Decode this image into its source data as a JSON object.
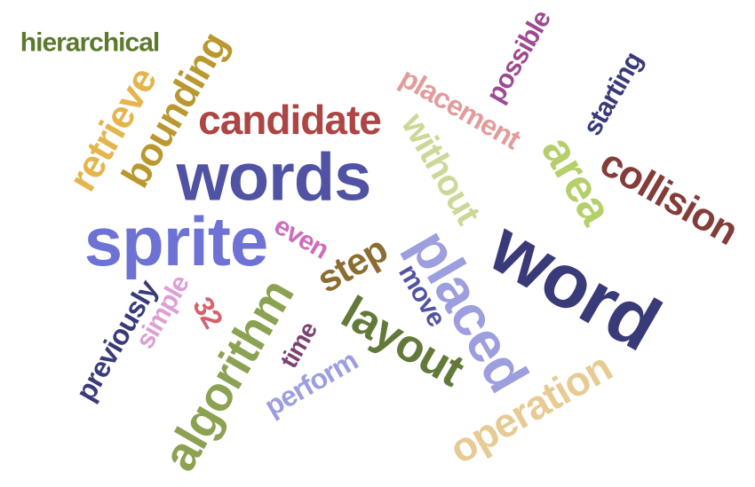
{
  "word_cloud": {
    "words": [
      {
        "text": "hierarchical",
        "color": "#5c7a2e"
      },
      {
        "text": "bounding",
        "color": "#b9982f"
      },
      {
        "text": "retrieve",
        "color": "#e5b54d"
      },
      {
        "text": "candidate",
        "color": "#ad4545"
      },
      {
        "text": "words",
        "color": "#5053a3"
      },
      {
        "text": "sprite",
        "color": "#6e72d4"
      },
      {
        "text": "possible",
        "color": "#9e4a92"
      },
      {
        "text": "placement",
        "color": "#e39b9b"
      },
      {
        "text": "without",
        "color": "#cdd797"
      },
      {
        "text": "starting",
        "color": "#393b79"
      },
      {
        "text": "area",
        "color": "#b5cf6b"
      },
      {
        "text": "collision",
        "color": "#843c39"
      },
      {
        "text": "word",
        "color": "#393b79"
      },
      {
        "text": "placed",
        "color": "#9c9ede"
      },
      {
        "text": "even",
        "color": "#ce6dbd"
      },
      {
        "text": "step",
        "color": "#8c6d31"
      },
      {
        "text": "move",
        "color": "#5254a3"
      },
      {
        "text": "layout",
        "color": "#637939"
      },
      {
        "text": "operation",
        "color": "#e7cb94"
      },
      {
        "text": "previously",
        "color": "#393b79"
      },
      {
        "text": "simple",
        "color": "#de9ed6"
      },
      {
        "text": "32",
        "color": "#d6616b"
      },
      {
        "text": "algorithm",
        "color": "#8ca252"
      },
      {
        "text": "time",
        "color": "#7b4173"
      },
      {
        "text": "perform",
        "color": "#9c9ede"
      }
    ]
  }
}
